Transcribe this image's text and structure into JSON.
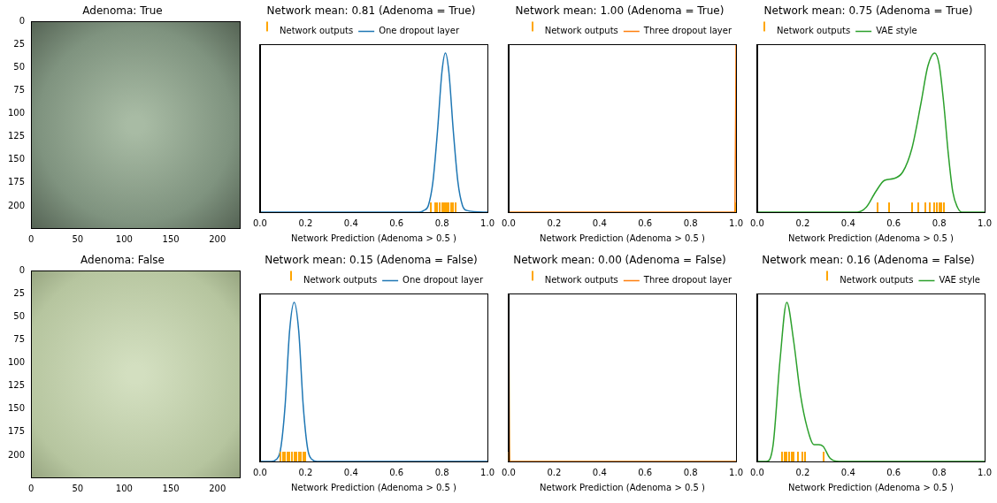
{
  "chart_data": [
    {
      "type": "image",
      "title": "Adenoma: True",
      "xlim": [
        0,
        224
      ],
      "xticks": [
        0,
        50,
        100,
        150,
        200
      ],
      "ylim": [
        224,
        0
      ],
      "yticks": [
        0,
        25,
        50,
        75,
        100,
        125,
        150,
        175,
        200
      ],
      "grid": false
    },
    {
      "type": "line",
      "title": "Network mean: 0.81 (Adenoma = True)",
      "x_label": "Network Prediction (Adenoma > 0.5 )",
      "xlim": [
        0,
        1
      ],
      "xticks": [
        {
          "value": 0,
          "label": "0.0"
        },
        0.2,
        0.4,
        0.6,
        0.8,
        {
          "value": 1,
          "label": "1.0"
        }
      ],
      "ylim": [
        0,
        1
      ],
      "tick_labels": "x",
      "grid": false,
      "legend": "top left",
      "series": [
        {
          "name": "One dropout layer",
          "color": "#1f77b4",
          "x": [
            0,
            0.7,
            0.72,
            0.74,
            0.76,
            0.78,
            0.8,
            0.815,
            0.83,
            0.85,
            0.87,
            0.89,
            0.91,
            1.0
          ],
          "values": [
            0,
            0,
            0.01,
            0.04,
            0.18,
            0.48,
            0.84,
            0.95,
            0.84,
            0.48,
            0.18,
            0.04,
            0.01,
            0
          ]
        },
        {
          "name": "Network outputs",
          "type": "rug",
          "color": "#ffa500",
          "x": [
            0.75,
            0.77,
            0.78,
            0.79,
            0.8,
            0.805,
            0.81,
            0.815,
            0.82,
            0.825,
            0.83,
            0.84,
            0.85,
            0.86
          ]
        }
      ]
    },
    {
      "type": "line",
      "title": "Network mean: 1.00 (Adenoma = True)",
      "x_label": "Network Prediction (Adenoma > 0.5 )",
      "xlim": [
        0,
        1
      ],
      "xticks": [
        {
          "value": 0,
          "label": "0.0"
        },
        0.2,
        0.4,
        0.6,
        0.8,
        {
          "value": 1,
          "label": "1.0"
        }
      ],
      "ylim": [
        0,
        1
      ],
      "tick_labels": "x",
      "grid": false,
      "legend": "top right",
      "series": [
        {
          "name": "Three dropout layer",
          "color": "#ff7f0e",
          "x": [
            0,
            0.995,
            1.0
          ],
          "values": [
            0,
            0,
            1
          ]
        },
        {
          "name": "Network outputs",
          "type": "rug",
          "color": "#ffa500",
          "x": [
            1,
            1,
            1,
            1,
            1,
            1,
            1,
            1,
            1,
            1
          ]
        }
      ]
    },
    {
      "type": "line",
      "title": "Network mean: 0.75 (Adenoma = True)",
      "x_label": "Network Prediction (Adenoma > 0.5 )",
      "xlim": [
        0,
        1
      ],
      "xticks": [
        {
          "value": 0,
          "label": "0.0"
        },
        0.2,
        0.4,
        0.6,
        0.8,
        {
          "value": 1,
          "label": "1.0"
        }
      ],
      "ylim": [
        0,
        1
      ],
      "tick_labels": "x",
      "grid": false,
      "legend": "top left",
      "series": [
        {
          "name": "VAE style",
          "color": "#2ca02c",
          "x": [
            0,
            0.44,
            0.48,
            0.52,
            0.56,
            0.6,
            0.64,
            0.68,
            0.72,
            0.75,
            0.78,
            0.8,
            0.82,
            0.84,
            0.86,
            0.88,
            0.9,
            1.0
          ],
          "values": [
            0,
            0,
            0.03,
            0.12,
            0.19,
            0.2,
            0.24,
            0.38,
            0.65,
            0.87,
            0.95,
            0.88,
            0.65,
            0.35,
            0.12,
            0.03,
            0,
            0
          ]
        },
        {
          "name": "Network outputs",
          "type": "rug",
          "color": "#ffa500",
          "x": [
            0.53,
            0.58,
            0.68,
            0.71,
            0.74,
            0.76,
            0.78,
            0.79,
            0.8,
            0.81,
            0.82
          ]
        }
      ]
    },
    {
      "type": "image",
      "title": "Adenoma: False",
      "xlim": [
        0,
        224
      ],
      "xticks": [
        0,
        50,
        100,
        150,
        200
      ],
      "ylim": [
        224,
        0
      ],
      "yticks": [
        0,
        25,
        50,
        75,
        100,
        125,
        150,
        175,
        200
      ],
      "grid": false
    },
    {
      "type": "line",
      "title": "Network mean: 0.15 (Adenoma = False)",
      "x_label": "Network Prediction (Adenoma > 0.5 )",
      "xlim": [
        0,
        1
      ],
      "xticks": [
        {
          "value": 0,
          "label": "0.0"
        },
        0.2,
        0.4,
        0.6,
        0.8,
        {
          "value": 1,
          "label": "1.0"
        }
      ],
      "ylim": [
        0,
        1
      ],
      "tick_labels": "x",
      "grid": false,
      "legend": "top right",
      "series": [
        {
          "name": "One dropout layer",
          "color": "#1f77b4",
          "x": [
            0,
            0.05,
            0.07,
            0.09,
            0.11,
            0.13,
            0.15,
            0.17,
            0.19,
            0.21,
            0.23,
            0.25,
            1.0
          ],
          "values": [
            0,
            0,
            0.01,
            0.07,
            0.33,
            0.78,
            0.95,
            0.78,
            0.33,
            0.07,
            0.01,
            0,
            0
          ]
        },
        {
          "name": "Network outputs",
          "type": "rug",
          "color": "#ffa500",
          "x": [
            0.09,
            0.1,
            0.11,
            0.12,
            0.13,
            0.14,
            0.15,
            0.16,
            0.17,
            0.18,
            0.19,
            0.2
          ]
        }
      ]
    },
    {
      "type": "line",
      "title": "Network mean: 0.00 (Adenoma = False)",
      "x_label": "Network Prediction (Adenoma > 0.5 )",
      "xlim": [
        0,
        1
      ],
      "xticks": [
        {
          "value": 0,
          "label": "0.0"
        },
        0.2,
        0.4,
        0.6,
        0.8,
        {
          "value": 1,
          "label": "1.0"
        }
      ],
      "ylim": [
        0,
        1
      ],
      "tick_labels": "x",
      "grid": false,
      "legend": "top right",
      "series": [
        {
          "name": "Three dropout layer",
          "color": "#ff7f0e",
          "x": [
            0,
            0.005,
            1.0
          ],
          "values": [
            1,
            0,
            0
          ]
        },
        {
          "name": "Network outputs",
          "type": "rug",
          "color": "#ffa500",
          "x": [
            0,
            0,
            0,
            0,
            0,
            0,
            0,
            0,
            0,
            0
          ]
        }
      ]
    },
    {
      "type": "line",
      "title": "Network mean: 0.16 (Adenoma = False)",
      "x_label": "Network Prediction (Adenoma > 0.5 )",
      "xlim": [
        0,
        1
      ],
      "xticks": [
        {
          "value": 0,
          "label": "0.0"
        },
        0.2,
        0.4,
        0.6,
        0.8,
        {
          "value": 1,
          "label": "1.0"
        }
      ],
      "ylim": [
        0,
        1
      ],
      "tick_labels": "x",
      "grid": false,
      "legend": "top right",
      "series": [
        {
          "name": "VAE style",
          "color": "#2ca02c",
          "x": [
            0,
            0.04,
            0.07,
            0.1,
            0.13,
            0.16,
            0.19,
            0.22,
            0.25,
            0.27,
            0.29,
            0.32,
            0.36,
            1.0
          ],
          "values": [
            0,
            0,
            0.1,
            0.6,
            0.95,
            0.72,
            0.4,
            0.2,
            0.1,
            0.1,
            0.09,
            0.02,
            0,
            0
          ]
        },
        {
          "name": "Network outputs",
          "type": "rug",
          "color": "#ffa500",
          "x": [
            0.11,
            0.12,
            0.13,
            0.14,
            0.15,
            0.16,
            0.18,
            0.2,
            0.21,
            0.29
          ]
        }
      ]
    }
  ]
}
